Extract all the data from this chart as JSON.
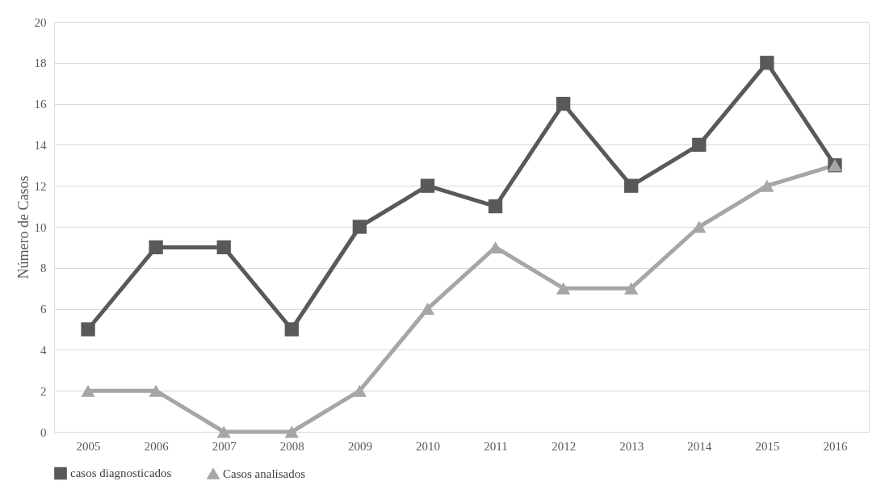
{
  "chart_data": {
    "type": "line",
    "ylabel": "Número de Casos",
    "categories": [
      "2005",
      "2006",
      "2007",
      "2008",
      "2009",
      "2010",
      "2011",
      "2012",
      "2013",
      "2014",
      "2015",
      "2016"
    ],
    "series": [
      {
        "name": "casos diagnosticados",
        "color": "#595959",
        "marker": "square",
        "values": [
          5,
          9,
          9,
          5,
          10,
          12,
          11,
          16,
          12,
          14,
          18,
          13
        ]
      },
      {
        "name": "Casos analisados",
        "color": "#a6a6a6",
        "marker": "triangle",
        "values": [
          2,
          2,
          0,
          0,
          2,
          6,
          9,
          7,
          7,
          10,
          12,
          13
        ]
      }
    ],
    "ylim": [
      0,
      20
    ],
    "yticks": [
      0,
      2,
      4,
      6,
      8,
      10,
      12,
      14,
      16,
      18,
      20
    ],
    "grid": "y",
    "legend": "bottom",
    "line_style": "solid"
  }
}
